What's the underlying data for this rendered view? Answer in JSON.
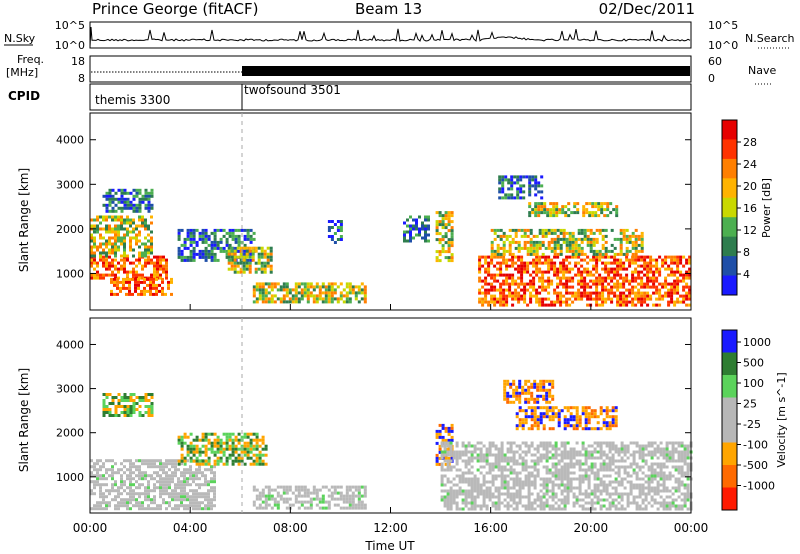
{
  "header": {
    "title": "Prince George (fitACF)",
    "beam": "Beam 13",
    "date": "02/Dec/2011"
  },
  "sky_panel": {
    "left_label": "N.Sky",
    "left_ticks": [
      "10^5",
      "10^0"
    ],
    "right_ticks": [
      "10^5",
      "10^0"
    ],
    "right_label": "N.Search"
  },
  "freq_panel": {
    "left_label_1": "Freq.",
    "left_label_2": "[MHz]",
    "left_ticks": [
      "18",
      "8"
    ],
    "right_ticks": [
      "60",
      "0"
    ],
    "right_label": "Nave"
  },
  "cpid_panel": {
    "label": "CPID",
    "segments": [
      {
        "name": "themis 3300",
        "start_hour": 0
      },
      {
        "name": "twofsound 3501",
        "start_hour": 6
      }
    ]
  },
  "colors": {
    "power_scale": [
      "#1a1aff",
      "#1f4fa8",
      "#2e7d4e",
      "#4caf50",
      "#c9d800",
      "#ffb300",
      "#ff7f00",
      "#ff3300",
      "#e60000"
    ],
    "velocity_scale": [
      "#1a1aff",
      "#2e7d32",
      "#5bd35b",
      "#b7b7b7",
      "#b7b7b7",
      "#ffa500",
      "#ff6a00",
      "#ff1a00"
    ],
    "ground_scatter": "#b9b9b9"
  },
  "chart_data": [
    {
      "type": "heatmap",
      "panel": "power",
      "xlabel": "Time UT",
      "ylabel": "Slant Range [km]",
      "x_ticks": [
        "00:00",
        "04:00",
        "08:00",
        "12:00",
        "16:00",
        "20:00",
        "00:00"
      ],
      "x_range_hours": [
        0,
        24
      ],
      "y_ticks": [
        "1000",
        "2000",
        "3000",
        "4000"
      ],
      "y_range_km": [
        180,
        4600
      ],
      "colorbar_label": "Power [dB]",
      "colorbar_ticks": [
        "28",
        "24",
        "20",
        "16",
        "12",
        "8",
        "4"
      ],
      "colorbar_range": [
        0,
        30
      ],
      "patches": [
        {
          "t0": 0.0,
          "t1": 3.0,
          "r0": 900,
          "r1": 1400,
          "level": "high"
        },
        {
          "t0": 0.8,
          "t1": 3.2,
          "r0": 550,
          "r1": 900,
          "level": "high"
        },
        {
          "t0": 0.0,
          "t1": 2.5,
          "r0": 1400,
          "r1": 2300,
          "level": "med"
        },
        {
          "t0": 0.5,
          "t1": 2.5,
          "r0": 2400,
          "r1": 2900,
          "level": "low"
        },
        {
          "t0": 3.5,
          "t1": 6.5,
          "r0": 1300,
          "r1": 2000,
          "level": "low"
        },
        {
          "t0": 5.5,
          "t1": 7.2,
          "r0": 1000,
          "r1": 1600,
          "level": "med"
        },
        {
          "t0": 6.5,
          "t1": 11.0,
          "r0": 350,
          "r1": 800,
          "level": "med"
        },
        {
          "t0": 9.5,
          "t1": 10.0,
          "r0": 1700,
          "r1": 2200,
          "level": "low"
        },
        {
          "t0": 12.5,
          "t1": 13.5,
          "r0": 1700,
          "r1": 2300,
          "level": "low"
        },
        {
          "t0": 13.8,
          "t1": 14.4,
          "r0": 1300,
          "r1": 2400,
          "level": "med"
        },
        {
          "t0": 15.5,
          "t1": 24.0,
          "r0": 300,
          "r1": 1400,
          "level": "high"
        },
        {
          "t0": 16.0,
          "t1": 22.0,
          "r0": 1400,
          "r1": 2000,
          "level": "med"
        },
        {
          "t0": 17.5,
          "t1": 21.0,
          "r0": 2300,
          "r1": 2600,
          "level": "med"
        },
        {
          "t0": 16.3,
          "t1": 18.0,
          "r0": 2700,
          "r1": 3200,
          "level": "low"
        }
      ]
    },
    {
      "type": "heatmap",
      "panel": "velocity",
      "xlabel": "Time UT",
      "ylabel": "Slant Range [km]",
      "x_ticks": [
        "00:00",
        "04:00",
        "08:00",
        "12:00",
        "16:00",
        "20:00",
        "00:00"
      ],
      "x_range_hours": [
        0,
        24
      ],
      "y_ticks": [
        "1000",
        "2000",
        "3000",
        "4000"
      ],
      "y_range_km": [
        180,
        4600
      ],
      "colorbar_label": "Velocity [m s^-1]",
      "colorbar_ticks": [
        "1000",
        "500",
        "100",
        "25",
        "-25",
        "-100",
        "-500",
        "-1000"
      ],
      "patches": [
        {
          "t0": 0.0,
          "t1": 5.0,
          "r0": 300,
          "r1": 1400,
          "level": "ground"
        },
        {
          "t0": 3.5,
          "t1": 7.0,
          "r0": 1300,
          "r1": 2000,
          "level": "pos"
        },
        {
          "t0": 6.5,
          "t1": 11.0,
          "r0": 300,
          "r1": 800,
          "level": "ground"
        },
        {
          "t0": 13.8,
          "t1": 14.4,
          "r0": 1300,
          "r1": 2200,
          "level": "neg"
        },
        {
          "t0": 14.0,
          "t1": 24.0,
          "r0": 300,
          "r1": 1800,
          "level": "ground"
        },
        {
          "t0": 17.0,
          "t1": 21.0,
          "r0": 2100,
          "r1": 2600,
          "level": "neg"
        },
        {
          "t0": 16.5,
          "t1": 18.5,
          "r0": 2700,
          "r1": 3200,
          "level": "neg"
        },
        {
          "t0": 0.5,
          "t1": 2.5,
          "r0": 2400,
          "r1": 2900,
          "level": "pos"
        }
      ]
    }
  ]
}
